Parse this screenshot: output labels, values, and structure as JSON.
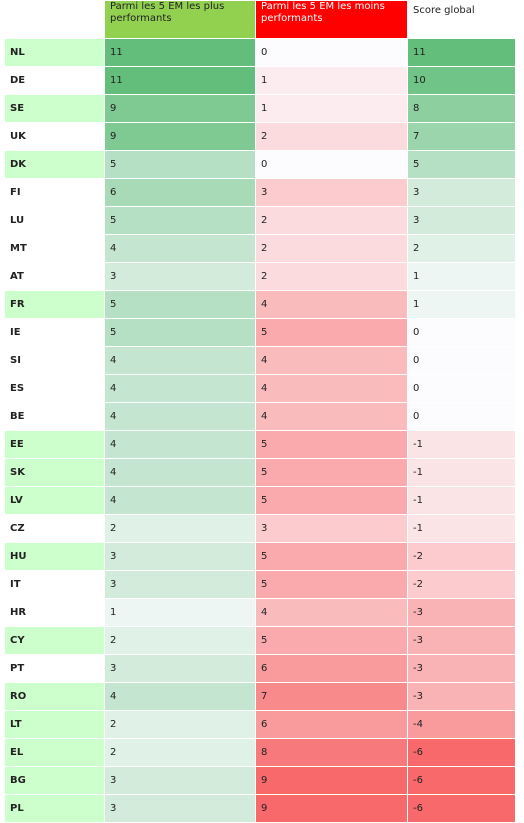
{
  "headers": [
    "",
    "Parmi les 5 EM les plus performants",
    "Parmi les 5 EM les moins performants",
    "Score global"
  ],
  "rows": [
    {
      "country": "NL",
      "best": 11,
      "worst": 0,
      "score": 11,
      "c0": "#ccffcc"
    },
    {
      "country": "DE",
      "best": 11,
      "worst": 1,
      "score": 10,
      "c0": "#ffffff"
    },
    {
      "country": "SE",
      "best": 9,
      "worst": 1,
      "score": 8,
      "c0": "#ccffcc"
    },
    {
      "country": "UK",
      "best": 9,
      "worst": 2,
      "score": 7,
      "c0": "#ffffff"
    },
    {
      "country": "DK",
      "best": 5,
      "worst": 0,
      "score": 5,
      "c0": "#ccffcc"
    },
    {
      "country": "FI",
      "best": 6,
      "worst": 3,
      "score": 3,
      "c0": "#ffffff"
    },
    {
      "country": "LU",
      "best": 5,
      "worst": 2,
      "score": 3,
      "c0": "#ffffff"
    },
    {
      "country": "MT",
      "best": 4,
      "worst": 2,
      "score": 2,
      "c0": "#ffffff"
    },
    {
      "country": "AT",
      "best": 3,
      "worst": 2,
      "score": 1,
      "c0": "#ffffff"
    },
    {
      "country": "FR",
      "best": 5,
      "worst": 4,
      "score": 1,
      "c0": "#ccffcc"
    },
    {
      "country": "IE",
      "best": 5,
      "worst": 5,
      "score": 0,
      "c0": "#ffffff"
    },
    {
      "country": "SI",
      "best": 4,
      "worst": 4,
      "score": 0,
      "c0": "#ffffff"
    },
    {
      "country": "ES",
      "best": 4,
      "worst": 4,
      "score": 0,
      "c0": "#ffffff"
    },
    {
      "country": "BE",
      "best": 4,
      "worst": 4,
      "score": 0,
      "c0": "#ffffff"
    },
    {
      "country": "EE",
      "best": 4,
      "worst": 5,
      "score": -1,
      "c0": "#ccffcc"
    },
    {
      "country": "SK",
      "best": 4,
      "worst": 5,
      "score": -1,
      "c0": "#ccffcc"
    },
    {
      "country": "LV",
      "best": 4,
      "worst": 5,
      "score": -1,
      "c0": "#ccffcc"
    },
    {
      "country": "CZ",
      "best": 2,
      "worst": 3,
      "score": -1,
      "c0": "#ffffff"
    },
    {
      "country": "HU",
      "best": 3,
      "worst": 5,
      "score": -2,
      "c0": "#ccffcc"
    },
    {
      "country": "IT",
      "best": 3,
      "worst": 5,
      "score": -2,
      "c0": "#ffffff"
    },
    {
      "country": "HR",
      "best": 1,
      "worst": 4,
      "score": -3,
      "c0": "#ffffff"
    },
    {
      "country": "CY",
      "best": 2,
      "worst": 5,
      "score": -3,
      "c0": "#ccffcc"
    },
    {
      "country": "PT",
      "best": 3,
      "worst": 6,
      "score": -3,
      "c0": "#ffffff"
    },
    {
      "country": "RO",
      "best": 4,
      "worst": 7,
      "score": -3,
      "c0": "#ccffcc"
    },
    {
      "country": "LT",
      "best": 2,
      "worst": 6,
      "score": -4,
      "c0": "#ccffcc"
    },
    {
      "country": "EL",
      "best": 2,
      "worst": 8,
      "score": -6,
      "c0": "#ccffcc"
    },
    {
      "country": "BG",
      "best": 3,
      "worst": 9,
      "score": -6,
      "c0": "#ccffcc"
    },
    {
      "country": "PL",
      "best": 3,
      "worst": 9,
      "score": -6,
      "c0": "#ccffcc"
    }
  ],
  "colors": {
    "green_high": "#63be7b",
    "red_high": "#f8696b",
    "neutral": "#fcfcff",
    "header_green": "#92d050",
    "header_red": "#ff0000"
  }
}
